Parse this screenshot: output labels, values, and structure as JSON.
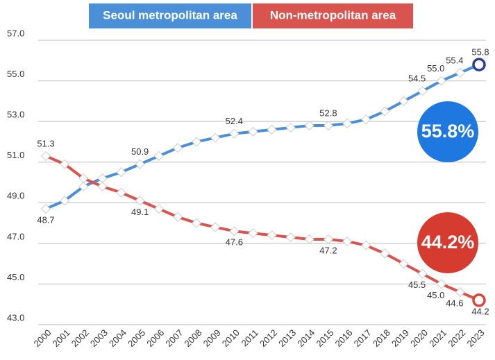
{
  "chart_data": {
    "type": "line",
    "categories": [
      "2000",
      "2001",
      "2002",
      "2003",
      "2004",
      "2005",
      "2006",
      "2007",
      "2008",
      "2009",
      "2010",
      "2011",
      "2012",
      "2013",
      "2014",
      "2015",
      "2016",
      "2017",
      "2018",
      "2019",
      "2020",
      "2021",
      "2022",
      "2023"
    ],
    "series": [
      {
        "name": "Seoul metropolitan area",
        "color": "#4a8fd8",
        "end_color": "#2c3e91",
        "values": [
          48.7,
          49.1,
          49.8,
          50.2,
          50.5,
          50.9,
          51.3,
          51.7,
          52.0,
          52.2,
          52.4,
          52.5,
          52.6,
          52.7,
          52.8,
          52.8,
          52.9,
          53.1,
          53.5,
          54.0,
          54.5,
          55.0,
          55.4,
          55.8
        ],
        "value_labels": [
          "48.7",
          null,
          null,
          null,
          null,
          "50.9",
          null,
          null,
          null,
          null,
          "52.4",
          null,
          null,
          null,
          null,
          "52.8",
          null,
          null,
          null,
          null,
          "54.5",
          "55.0",
          "55.4",
          "55.8"
        ]
      },
      {
        "name": "Non-metropolitan area",
        "color": "#d9534f",
        "end_color": "#d9463b",
        "values": [
          51.3,
          50.9,
          50.2,
          49.8,
          49.5,
          49.1,
          48.7,
          48.3,
          48.0,
          47.8,
          47.6,
          47.5,
          47.4,
          47.3,
          47.2,
          47.2,
          47.1,
          46.9,
          46.5,
          46.0,
          45.5,
          45.0,
          44.6,
          44.2
        ],
        "value_labels": [
          "51.3",
          null,
          null,
          null,
          null,
          "49.1",
          null,
          null,
          null,
          null,
          "47.6",
          null,
          null,
          null,
          null,
          "47.2",
          null,
          null,
          null,
          null,
          "45.5",
          "45.0",
          "44.6",
          "44.2"
        ]
      }
    ],
    "annotations": [
      {
        "text": "55.8%",
        "color": "#1f77e0"
      },
      {
        "text": "44.2%",
        "color": "#d63b30"
      }
    ],
    "ylim": [
      43,
      57
    ],
    "yticks": [
      {
        "value": 43,
        "label": "43.0"
      },
      {
        "value": 45,
        "label": "45.0"
      },
      {
        "value": 47,
        "label": "47.0"
      },
      {
        "value": 49,
        "label": "49.0"
      },
      {
        "value": 51,
        "label": "51.0"
      },
      {
        "value": 53,
        "label": "53.0"
      },
      {
        "value": 55,
        "label": "55.0"
      },
      {
        "value": 57,
        "label": "57.0"
      }
    ],
    "grid": true
  }
}
